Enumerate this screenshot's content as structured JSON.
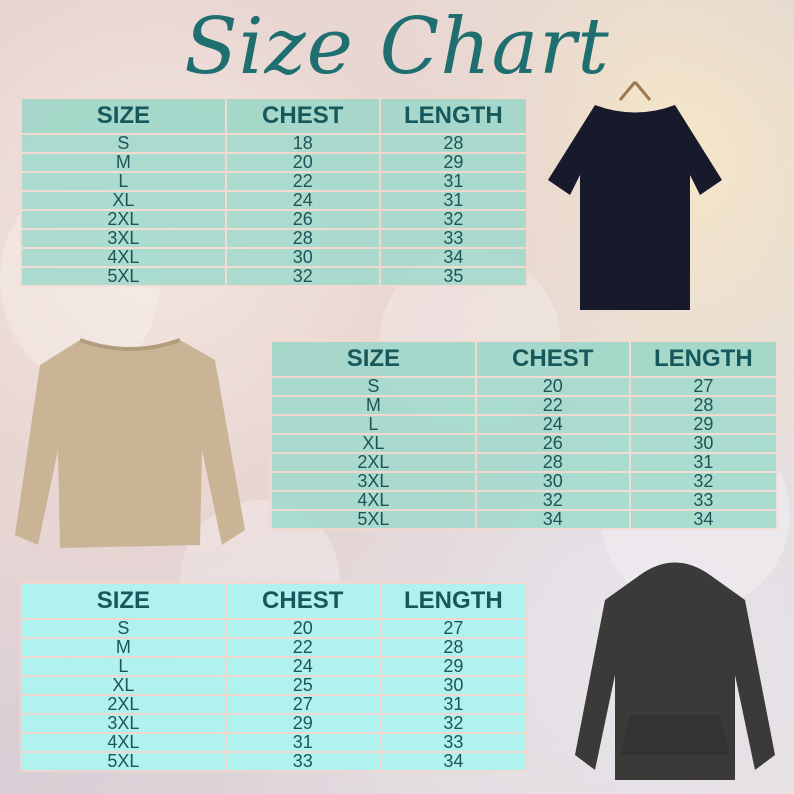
{
  "title": "Size Chart",
  "tables": [
    {
      "headers": [
        "SIZE",
        "CHEST",
        "LENGTH"
      ],
      "rows": [
        [
          "S",
          "18",
          "28"
        ],
        [
          "M",
          "20",
          "29"
        ],
        [
          "L",
          "22",
          "31"
        ],
        [
          "XL",
          "24",
          "31"
        ],
        [
          "2XL",
          "26",
          "32"
        ],
        [
          "3XL",
          "28",
          "33"
        ],
        [
          "4XL",
          "30",
          "34"
        ],
        [
          "5XL",
          "32",
          "35"
        ]
      ],
      "garment": "t-shirt",
      "garment_color": "#171a2b"
    },
    {
      "headers": [
        "SIZE",
        "CHEST",
        "LENGTH"
      ],
      "rows": [
        [
          "S",
          "20",
          "27"
        ],
        [
          "M",
          "22",
          "28"
        ],
        [
          "L",
          "24",
          "29"
        ],
        [
          "XL",
          "26",
          "30"
        ],
        [
          "2XL",
          "28",
          "31"
        ],
        [
          "3XL",
          "30",
          "32"
        ],
        [
          "4XL",
          "32",
          "33"
        ],
        [
          "5XL",
          "34",
          "34"
        ]
      ],
      "garment": "sweatshirt",
      "garment_color": "#c9b596"
    },
    {
      "headers": [
        "SIZE",
        "CHEST",
        "LENGTH"
      ],
      "rows": [
        [
          "S",
          "20",
          "27"
        ],
        [
          "M",
          "22",
          "28"
        ],
        [
          "L",
          "24",
          "29"
        ],
        [
          "XL",
          "25",
          "30"
        ],
        [
          "2XL",
          "27",
          "31"
        ],
        [
          "3XL",
          "29",
          "32"
        ],
        [
          "4XL",
          "31",
          "33"
        ],
        [
          "5XL",
          "33",
          "34"
        ]
      ],
      "garment": "hoodie",
      "garment_color": "#3a3a38"
    }
  ]
}
